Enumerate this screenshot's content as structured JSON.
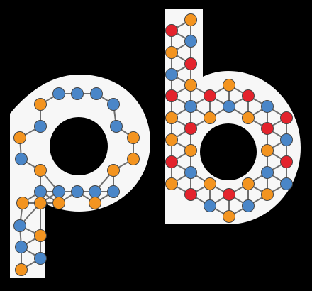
{
  "logo": {
    "letters": [
      "p",
      "b"
    ],
    "colors": {
      "background": "#000000",
      "shape": "#f7f7f7",
      "edge": "#6e6e6e",
      "orange": "#f39420",
      "blue": "#4a86c8",
      "red": "#e3232c"
    }
  }
}
